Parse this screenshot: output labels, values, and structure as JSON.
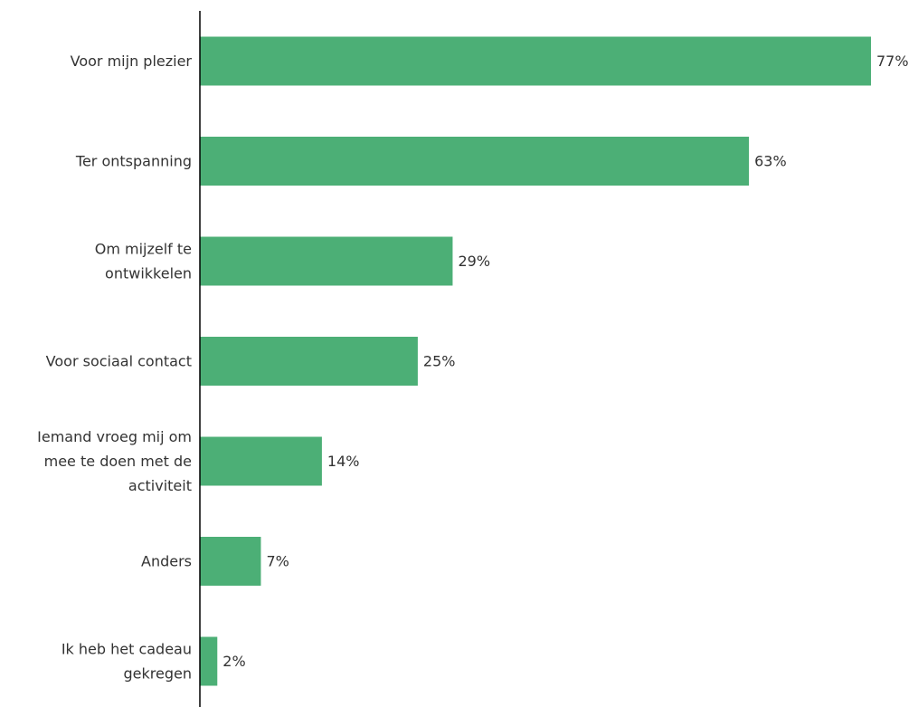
{
  "chart_data": {
    "type": "bar",
    "orientation": "horizontal",
    "categories": [
      [
        "Voor mijn plezier"
      ],
      [
        "Ter ontspanning"
      ],
      [
        "Om mijzelf te",
        "ontwikkelen"
      ],
      [
        "Voor sociaal contact"
      ],
      [
        "Iemand vroeg mij om",
        "mee te doen met de",
        "activiteit"
      ],
      [
        "Anders"
      ],
      [
        "Ik heb het cadeau",
        "gekregen"
      ]
    ],
    "values": [
      77,
      63,
      29,
      25,
      14,
      7,
      2
    ],
    "value_labels": [
      "77%",
      "63%",
      "29%",
      "25%",
      "14%",
      "7%",
      "2%"
    ],
    "unit": "%",
    "xlim": [
      0,
      80
    ],
    "bar_color": "#4caf76",
    "axis_color": "#000000",
    "grid": false,
    "legend": "none"
  }
}
